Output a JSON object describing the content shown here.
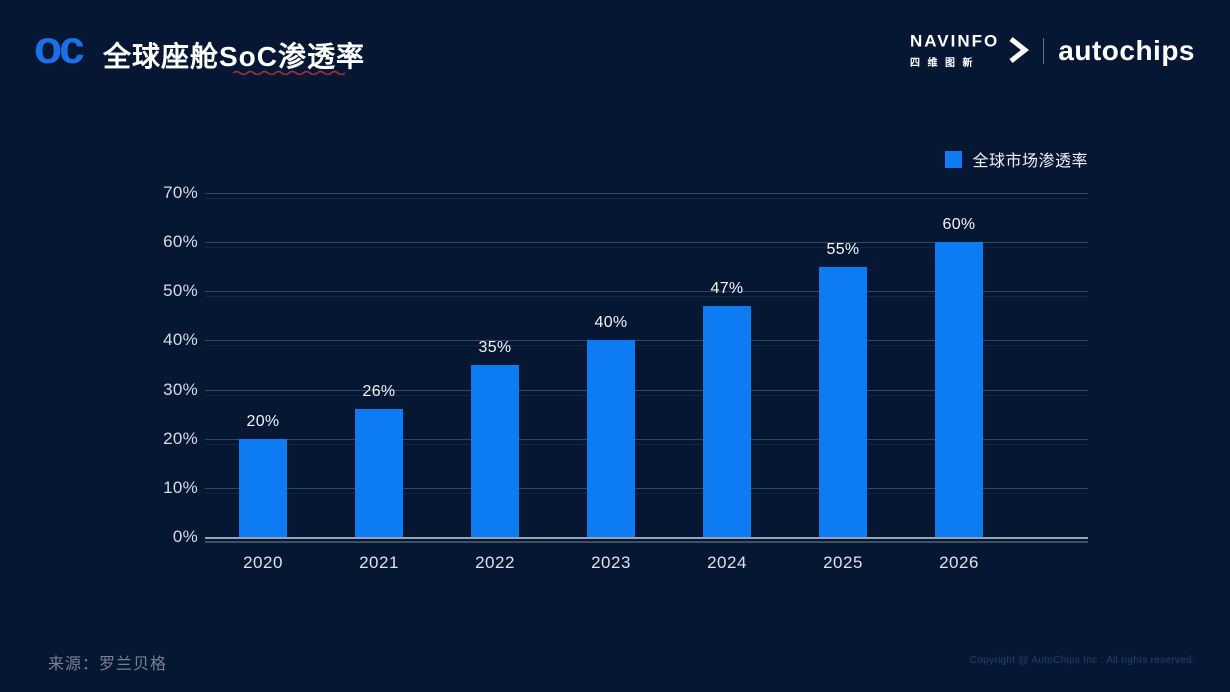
{
  "header": {
    "logo_text": "oc",
    "title": "全球座舱SoC渗透率",
    "navinfo_en": "NAVINFO",
    "navinfo_cn": "四维图新",
    "autochips": "autochips"
  },
  "legend": {
    "label": "全球市场渗透率",
    "swatch_color": "#0D7BF2"
  },
  "chart_data": {
    "type": "bar",
    "title": "全球座舱SoC渗透率",
    "categories": [
      "2020",
      "2021",
      "2022",
      "2023",
      "2024",
      "2025",
      "2026"
    ],
    "values": [
      20,
      26,
      35,
      40,
      47,
      55,
      60
    ],
    "data_labels": [
      "20%",
      "26%",
      "35%",
      "40%",
      "47%",
      "55%",
      "60%"
    ],
    "series_name": "全球市场渗透率",
    "unit": "%",
    "xlabel": "",
    "ylabel": "",
    "ylim": [
      0,
      70
    ],
    "ytick_step": 10,
    "yticks": [
      "0%",
      "10%",
      "20%",
      "30%",
      "40%",
      "50%",
      "60%",
      "70%"
    ],
    "grid": true,
    "legend_position": "top-right",
    "bar_color": "#0D7BF2",
    "background_color": "#051733"
  },
  "footer": {
    "source": "来源：罗兰贝格",
    "copyright": "Copyright @ AutoChips Inc . All rights reserved."
  }
}
